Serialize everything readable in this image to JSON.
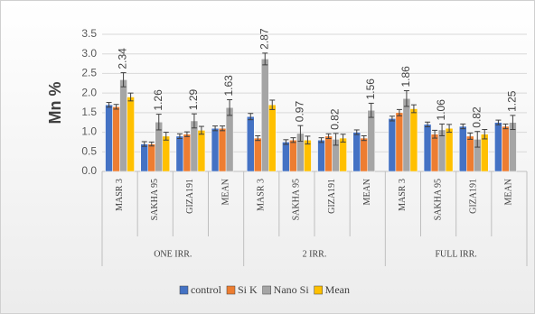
{
  "chart_data": {
    "type": "bar",
    "ylabel": "Mn %",
    "groups": [
      {
        "name": "ONE IRR.",
        "categories": [
          "MASR 3",
          "SAKHA 95",
          "GIZA191",
          "MEAN"
        ]
      },
      {
        "name": "2 IRR.",
        "categories": [
          "MASR 3",
          "SAKHA 95",
          "GIZA191",
          "MEAN"
        ]
      },
      {
        "name": "FULL IRR.",
        "categories": [
          "MASR 3",
          "SAKHA 95",
          "GIZA191",
          "MEAN"
        ]
      }
    ],
    "series": [
      {
        "name": "control",
        "color": "#4472c4",
        "values": [
          1.7,
          0.7,
          0.9,
          1.1,
          1.4,
          0.75,
          0.8,
          1.0,
          1.35,
          1.2,
          1.15,
          1.25
        ],
        "errors": [
          0.06,
          0.06,
          0.06,
          0.06,
          0.08,
          0.06,
          0.06,
          0.06,
          0.06,
          0.06,
          0.06,
          0.06
        ],
        "data_labels": false
      },
      {
        "name": "Si K",
        "color": "#ed7d31",
        "values": [
          1.65,
          0.7,
          0.95,
          1.1,
          0.85,
          0.8,
          0.9,
          0.85,
          1.5,
          0.95,
          0.9,
          1.15
        ],
        "errors": [
          0.06,
          0.05,
          0.06,
          0.06,
          0.06,
          0.06,
          0.06,
          0.06,
          0.08,
          0.1,
          0.08,
          0.06
        ],
        "data_labels": false
      },
      {
        "name": "Nano Si",
        "color": "#a5a5a5",
        "values": [
          2.34,
          1.26,
          1.29,
          1.63,
          2.87,
          0.97,
          0.82,
          1.56,
          1.86,
          1.06,
          0.82,
          1.25
        ],
        "errors": [
          0.18,
          0.2,
          0.18,
          0.2,
          0.15,
          0.2,
          0.15,
          0.18,
          0.2,
          0.15,
          0.2,
          0.18
        ],
        "data_labels": true
      },
      {
        "name": "Mean",
        "color": "#ffc000",
        "values": [
          1.9,
          0.9,
          1.05,
          null,
          1.7,
          0.8,
          0.85,
          null,
          1.6,
          1.1,
          0.95,
          null
        ],
        "errors": [
          0.1,
          0.1,
          0.1,
          null,
          0.12,
          0.1,
          0.1,
          null,
          0.1,
          0.1,
          0.12,
          null
        ],
        "data_labels": false
      }
    ],
    "ylim": [
      0,
      3.5
    ],
    "yticks": [
      {
        "value": 0,
        "label": "0.0"
      },
      0.5,
      {
        "value": 1,
        "label": "1.0"
      },
      1.5,
      {
        "value": 2,
        "label": "2.0"
      },
      2.5,
      {
        "value": 3,
        "label": "3.0"
      },
      3.5
    ],
    "grid": true,
    "legend": "bottom"
  }
}
